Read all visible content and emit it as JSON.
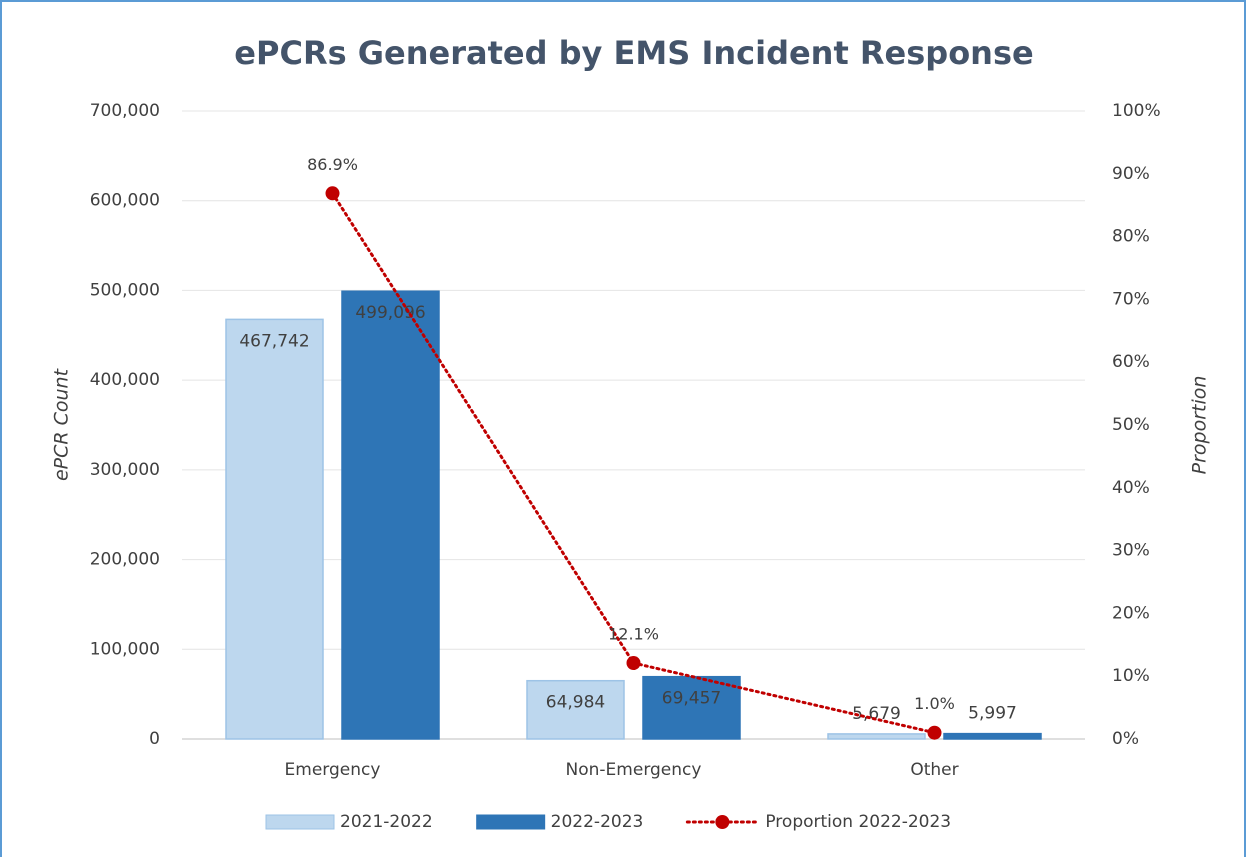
{
  "chart_data": {
    "type": "bar_line",
    "title": "ePCRs Generated by EMS Incident Response",
    "y_label": "ePCR Count",
    "y2_label": "Proportion",
    "categories": [
      "Emergency",
      "Non-Emergency",
      "Other"
    ],
    "series": [
      {
        "name": "2021-2022",
        "type": "bar",
        "color": "#bdd7ee",
        "values": [
          467742,
          64984,
          5679
        ],
        "value_labels": [
          "467,742",
          "64,984",
          "5,679"
        ]
      },
      {
        "name": "2022-2023",
        "type": "bar",
        "color": "#2e75b6",
        "values": [
          499096,
          69457,
          5997
        ],
        "value_labels": [
          "499,096",
          "69,457",
          "5,997"
        ]
      },
      {
        "name": "Proportion 2022-2023",
        "type": "line",
        "axis": "y2",
        "color": "#c00000",
        "values": [
          86.9,
          12.1,
          1.0
        ],
        "value_labels": [
          "86.9%",
          "12.1%",
          "1.0%"
        ]
      }
    ],
    "ylim": [
      0,
      700000
    ],
    "yticks": [
      0,
      {
        "value": 100000,
        "label": "100,000"
      },
      {
        "value": 200000,
        "label": "200,000"
      },
      {
        "value": 300000,
        "label": "300,000"
      },
      {
        "value": 400000,
        "label": "400,000"
      },
      {
        "value": 500000,
        "label": "500,000"
      },
      {
        "value": 600000,
        "label": "600,000"
      },
      {
        "value": 700000,
        "label": "700,000"
      }
    ],
    "y2lim": [
      0,
      100
    ],
    "y2ticks": [
      {
        "value": 0,
        "label": "0%"
      },
      {
        "value": 10,
        "label": "10%"
      },
      {
        "value": 20,
        "label": "20%"
      },
      {
        "value": 30,
        "label": "30%"
      },
      {
        "value": 40,
        "label": "40%"
      },
      {
        "value": 50,
        "label": "50%"
      },
      {
        "value": 60,
        "label": "60%"
      },
      {
        "value": 70,
        "label": "70%"
      },
      {
        "value": 80,
        "label": "80%"
      },
      {
        "value": 90,
        "label": "90%"
      },
      {
        "value": 100,
        "label": "100%"
      }
    ],
    "grid": true,
    "legend": "bottom"
  }
}
